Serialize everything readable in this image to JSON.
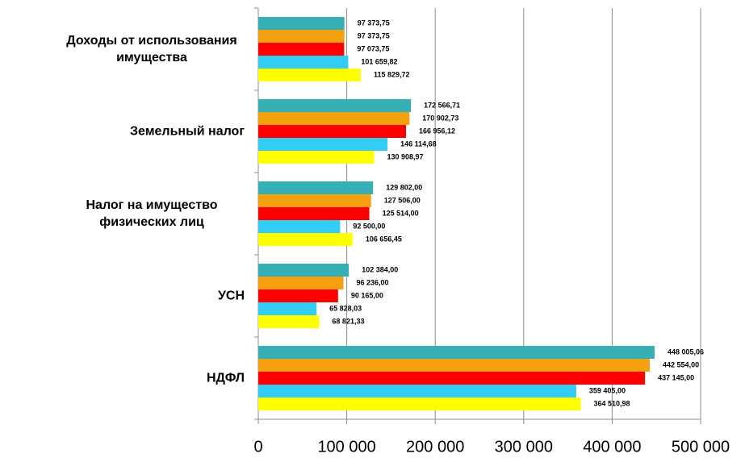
{
  "chart_data": {
    "type": "barh",
    "categories": [
      "Доходы от использования имущества",
      "Земельный налог",
      "Налог на имущество физических лиц",
      "УСН",
      "НДФЛ"
    ],
    "series": [
      {
        "color": "#36b0b4",
        "values": [
          97373.75,
          172566.71,
          129802,
          102384,
          448005.06
        ],
        "value_labels": [
          "97 373,75",
          "172 566,71",
          "129 802,00",
          "102 384,00",
          "448 005,06"
        ]
      },
      {
        "color": "#f5a00f",
        "values": [
          97373.75,
          170902.73,
          127506,
          96236,
          442554
        ],
        "value_labels": [
          "97 373,75",
          "170 902,73",
          "127 506,00",
          "96 236,00",
          "442 554,00"
        ]
      },
      {
        "color": "#ff0000",
        "values": [
          97073.75,
          166956.12,
          125514,
          90165,
          437145
        ],
        "value_labels": [
          "97 073,75",
          "166 956,12",
          "125 514,00",
          "90 165,00",
          "437 145,00"
        ]
      },
      {
        "color": "#33ccf5",
        "values": [
          101659.82,
          146114.68,
          92500,
          65828.03,
          359405
        ],
        "value_labels": [
          "101 659,82",
          "146 114,68",
          "92 500,00",
          "65 828,03",
          "359 405,00"
        ]
      },
      {
        "color": "#ffff00",
        "values": [
          115829.72,
          130908.97,
          106656.45,
          68821.33,
          364510.98
        ],
        "value_labels": [
          "115 829,72",
          "130 908,97",
          "106 656,45",
          "68 821,33",
          "364 510,98"
        ]
      }
    ],
    "xlim": [
      0,
      500000
    ],
    "xticks": [
      0,
      {
        "value": 100000,
        "label": "100 000"
      },
      {
        "value": 200000,
        "label": "200 000"
      },
      {
        "value": 300000,
        "label": "300 000"
      },
      {
        "value": 400000,
        "label": "400 000"
      },
      {
        "value": 500000,
        "label": "500 000"
      }
    ],
    "grid": true
  }
}
